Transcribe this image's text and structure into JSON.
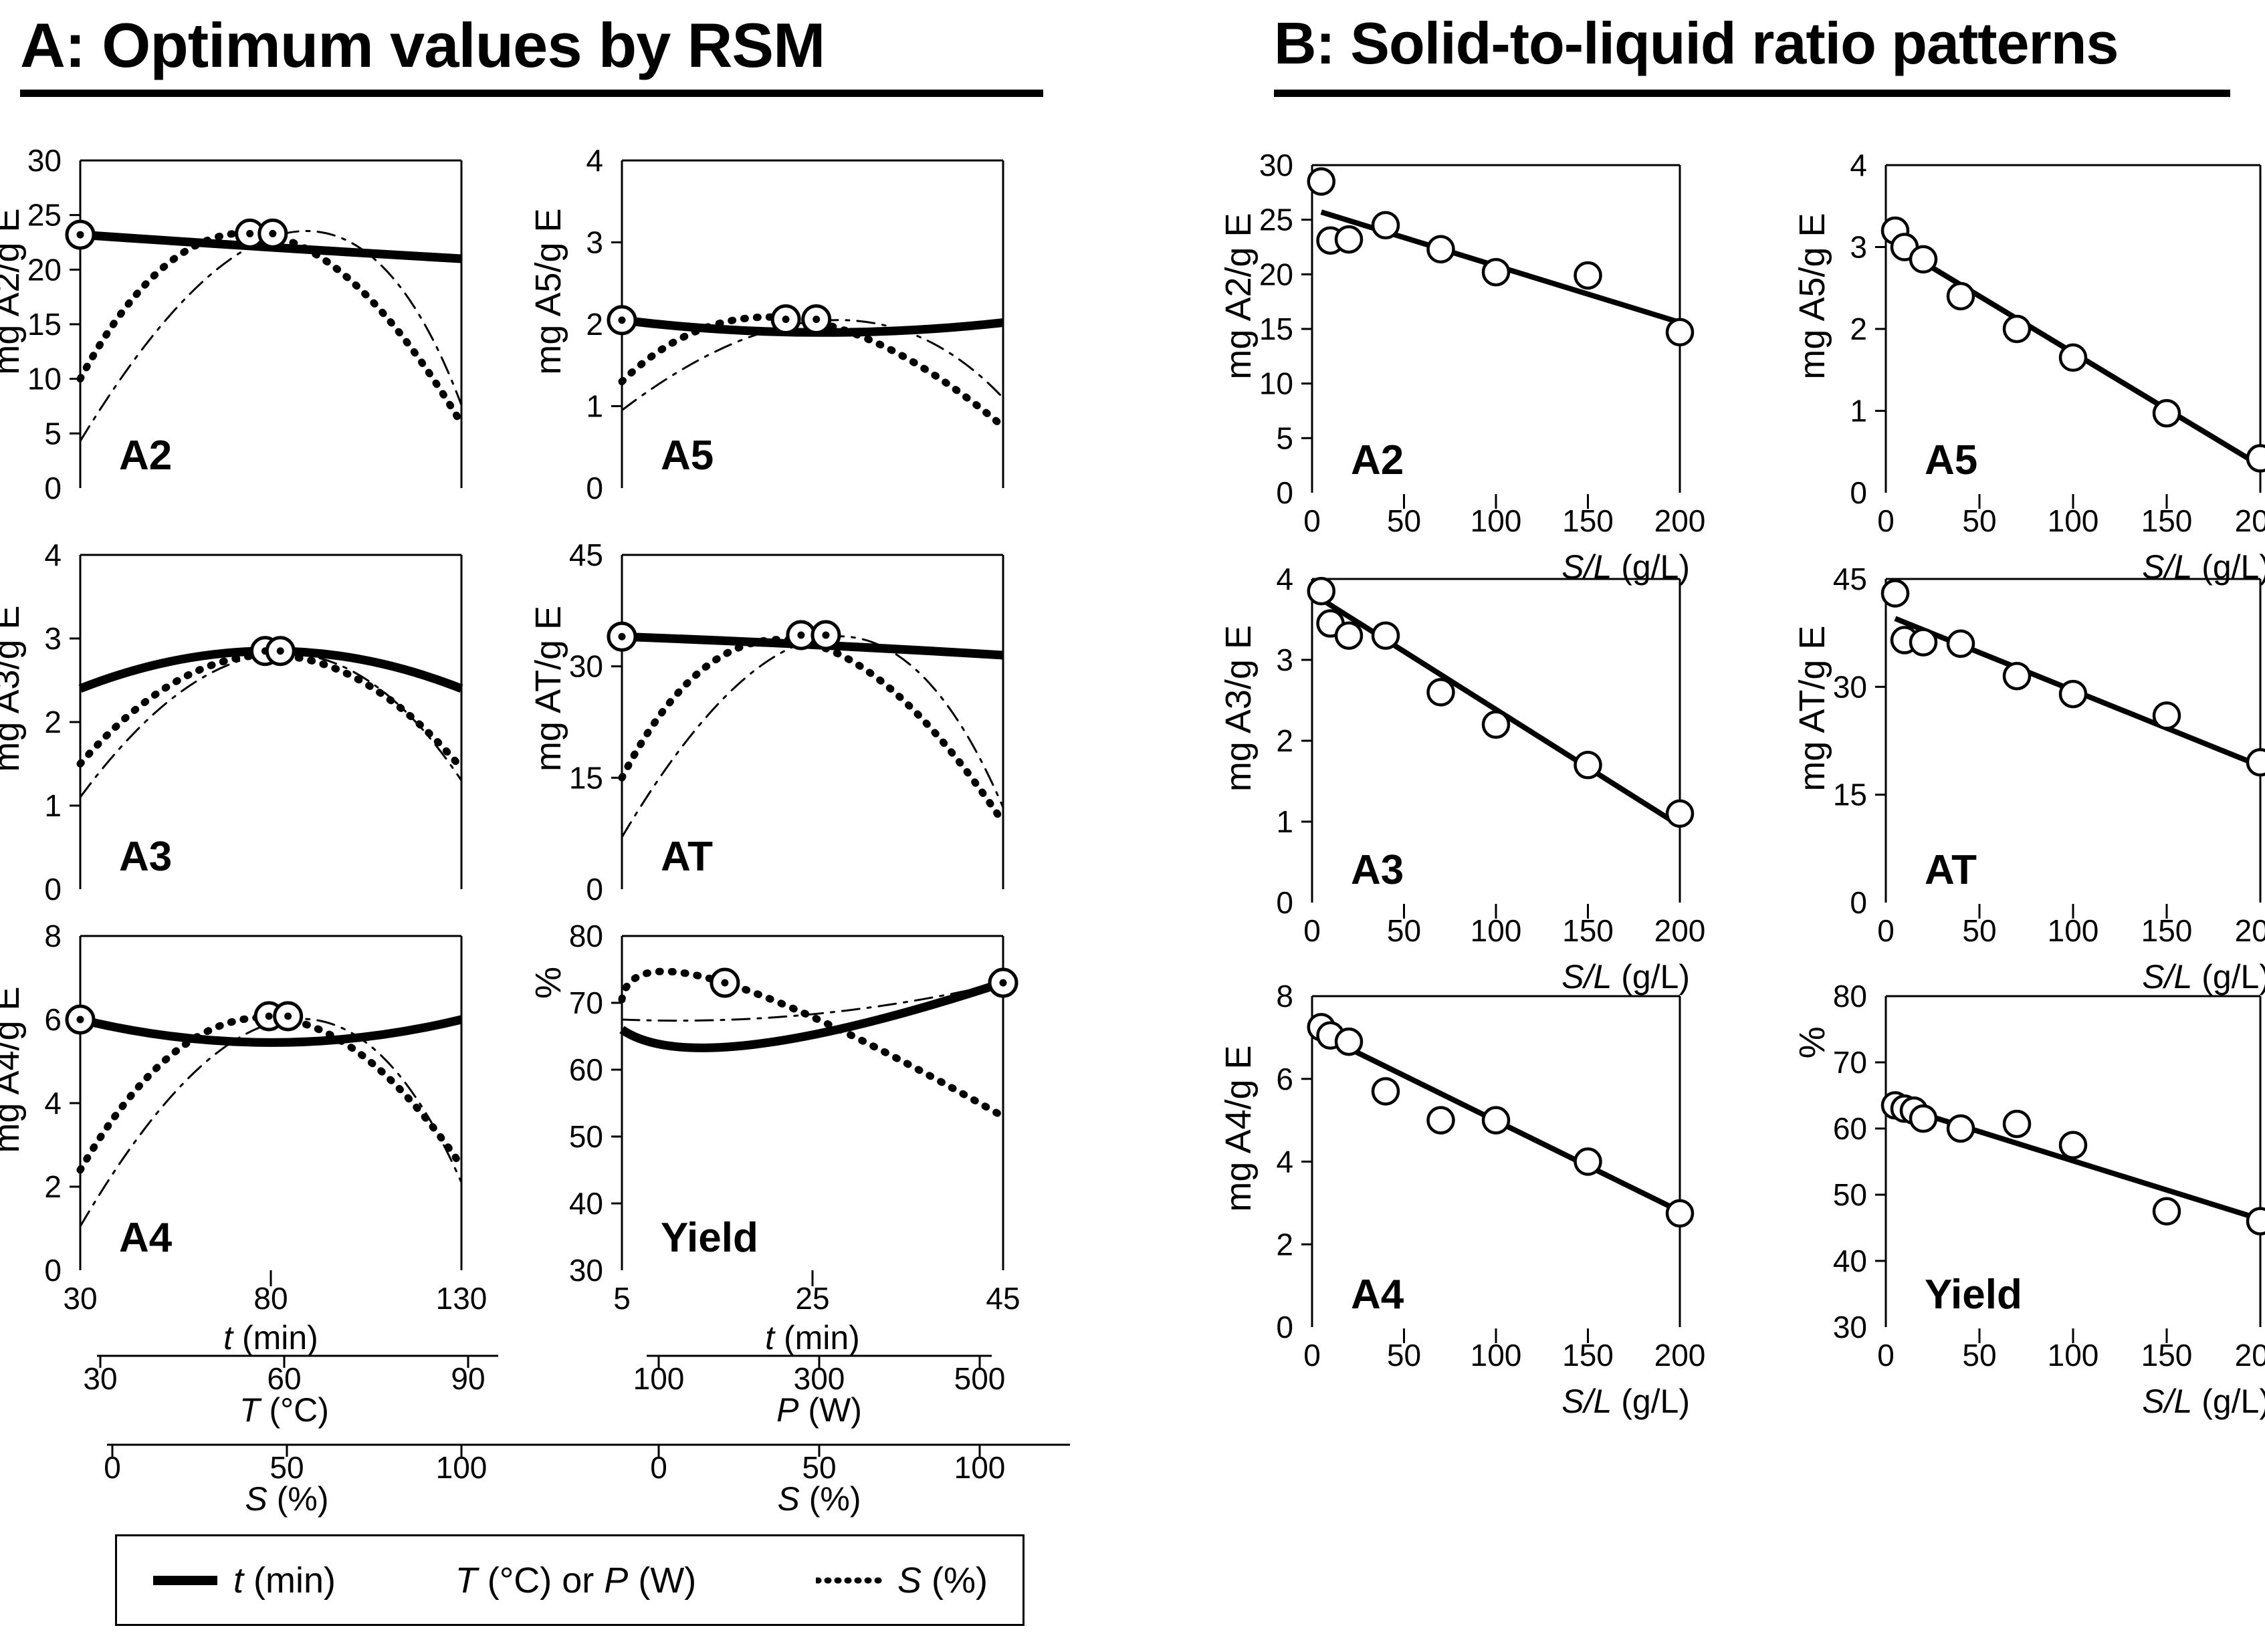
{
  "chart_data": {
    "type": "multi-panel-figure",
    "panel_a": {
      "title": "A: Optimum values by RSM",
      "x_scales": {
        "left_column": {
          "t_min": [
            30,
            130
          ],
          "T_C": [
            30,
            90
          ],
          "S_pct": [
            0,
            100
          ]
        },
        "right_column": {
          "t_min": [
            5,
            45
          ],
          "P_W": [
            100,
            500
          ],
          "S_pct": [
            0,
            100
          ]
        }
      },
      "charts": [
        {
          "id": "A2",
          "type": "line",
          "label": "A2",
          "ylabel": "mg A2/g E",
          "ylim": [
            0,
            30
          ],
          "yticks": [
            0,
            5,
            10,
            15,
            20,
            25,
            30
          ],
          "curves": {
            "t_min": [
              [
                0,
                23.2
              ],
              [
                0.5,
                22.05
              ],
              [
                1,
                21.0
              ]
            ],
            "T_or_P": [
              [
                0,
                4.3
              ],
              [
                0.57,
                23.5
              ],
              [
                1,
                7.6
              ]
            ],
            "S_pct": [
              [
                0,
                10.0
              ],
              [
                0.47,
                23.3
              ],
              [
                1,
                5.9
              ]
            ]
          },
          "optima_fx": [
            [
              0,
              23.2
            ],
            [
              0.445,
              23.3
            ],
            [
              0.505,
              23.3
            ]
          ]
        },
        {
          "id": "A5",
          "type": "line",
          "label": "A5",
          "ylabel": "mg A5/g E",
          "ylim": [
            0,
            4
          ],
          "yticks": [
            0,
            1,
            2,
            3,
            4
          ],
          "curves": {
            "t_min": [
              [
                0,
                2.05
              ],
              [
                0.5,
                1.9
              ],
              [
                1,
                2.02
              ]
            ],
            "T_or_P": [
              [
                0,
                0.95
              ],
              [
                0.55,
                2.05
              ],
              [
                1,
                1.1
              ]
            ],
            "S_pct": [
              [
                0,
                1.3
              ],
              [
                0.45,
                2.07
              ],
              [
                1,
                0.75
              ]
            ]
          },
          "optima_fx": [
            [
              0,
              2.05
            ],
            [
              0.43,
              2.06
            ],
            [
              0.51,
              2.06
            ]
          ]
        },
        {
          "id": "A3",
          "type": "line",
          "label": "A3",
          "ylabel": "mg A3/g E",
          "ylim": [
            0,
            4
          ],
          "yticks": [
            0,
            1,
            2,
            3,
            4
          ],
          "curves": {
            "t_min": [
              [
                0,
                2.4
              ],
              [
                0.5,
                2.85
              ],
              [
                1,
                2.4
              ]
            ],
            "T_or_P": [
              [
                0,
                1.1
              ],
              [
                0.52,
                2.82
              ],
              [
                1,
                1.3
              ]
            ],
            "S_pct": [
              [
                0,
                1.5
              ],
              [
                0.5,
                2.8
              ],
              [
                1,
                1.45
              ]
            ]
          },
          "optima_fx": [
            [
              0.485,
              2.85
            ],
            [
              0.525,
              2.85
            ]
          ]
        },
        {
          "id": "AT",
          "type": "line",
          "label": "AT",
          "ylabel": "mg AT/g E",
          "ylim": [
            0,
            45
          ],
          "yticks": [
            0,
            15,
            30,
            45
          ],
          "curves": {
            "t_min": [
              [
                0,
                34
              ],
              [
                0.5,
                32.9
              ],
              [
                1,
                31.5
              ]
            ],
            "T_or_P": [
              [
                0,
                7
              ],
              [
                0.55,
                34
              ],
              [
                1,
                11
              ]
            ],
            "S_pct": [
              [
                0,
                15
              ],
              [
                0.45,
                33.5
              ],
              [
                1,
                9
              ]
            ]
          },
          "optima_fx": [
            [
              0,
              34
            ],
            [
              0.47,
              34.2
            ],
            [
              0.535,
              34.2
            ]
          ]
        },
        {
          "id": "A4",
          "type": "line",
          "label": "A4",
          "ylabel": "mg A4/g E",
          "ylim": [
            0,
            8
          ],
          "yticks": [
            0,
            2,
            4,
            6,
            8
          ],
          "xticklabels": [
            "30",
            "80",
            "130"
          ],
          "xtitle": [
            [
              "t",
              true
            ],
            [
              " (min)",
              false
            ]
          ],
          "curves": {
            "t_min": [
              [
                0,
                6.0
              ],
              [
                0.5,
                5.45
              ],
              [
                1,
                6.0
              ]
            ],
            "T_or_P": [
              [
                0,
                1.05
              ],
              [
                0.55,
                6.0
              ],
              [
                1,
                2.1
              ]
            ],
            "S_pct": [
              [
                0,
                2.4
              ],
              [
                0.48,
                6.05
              ],
              [
                1,
                2.5
              ]
            ]
          },
          "optima_fx": [
            [
              0,
              6.0
            ],
            [
              0.495,
              6.08
            ],
            [
              0.545,
              6.08
            ]
          ]
        },
        {
          "id": "Yield",
          "type": "line",
          "label": "Yield",
          "ylabel": "%",
          "ylim": [
            30,
            80
          ],
          "yticks": [
            30,
            40,
            50,
            60,
            70,
            80
          ],
          "xticklabels": [
            "5",
            "25",
            "45"
          ],
          "xtitle": [
            [
              "t",
              true
            ],
            [
              " (min)",
              false
            ]
          ],
          "curves": {
            "t_min": [
              [
                0,
                66
              ],
              [
                0.35,
                63.8
              ],
              [
                1,
                73
              ]
            ],
            "T_or_P": [
              [
                0,
                67.5
              ],
              [
                0.5,
                68.3
              ],
              [
                1,
                73
              ]
            ],
            "S_pct": [
              [
                0,
                70.5
              ],
              [
                0.27,
                73
              ],
              [
                1,
                53
              ]
            ]
          },
          "optima_fx": [
            [
              0.27,
              73
            ],
            [
              1,
              73
            ]
          ]
        }
      ],
      "sub_axes": {
        "left": [
          {
            "title": [
              [
                "T",
                true
              ],
              [
                " (°C)",
                false
              ]
            ],
            "labels": [
              "30",
              "60",
              "90"
            ]
          },
          {
            "title": [
              [
                "S",
                true
              ],
              [
                " (%)",
                false
              ]
            ],
            "labels": [
              "0",
              "50",
              "100"
            ]
          }
        ],
        "right": [
          {
            "title": [
              [
                "P",
                true
              ],
              [
                " (W)",
                false
              ]
            ],
            "labels": [
              "100",
              "300",
              "500"
            ]
          },
          {
            "title": [
              [
                "S",
                true
              ],
              [
                " (%)",
                false
              ]
            ],
            "labels": [
              "0",
              "50",
              "100"
            ]
          }
        ]
      },
      "legend": [
        {
          "sample": "thick",
          "label": [
            [
              "t",
              true
            ],
            [
              " (min)",
              false
            ]
          ]
        },
        {
          "sample": "none",
          "label": [
            [
              "T",
              true
            ],
            [
              " (°C) or ",
              false
            ],
            [
              "P",
              true
            ],
            [
              " (W)",
              false
            ]
          ]
        },
        {
          "sample": "dotted",
          "label": [
            [
              "S",
              true
            ],
            [
              " (%)",
              false
            ]
          ]
        }
      ]
    },
    "panel_b": {
      "title": "B:  Solid-to-liquid ratio patterns",
      "xlim": [
        0,
        200
      ],
      "xticks": [
        0,
        50,
        100,
        150,
        200
      ],
      "xlabel": [
        [
          "S/L",
          true
        ],
        [
          " (g/L)",
          false
        ]
      ],
      "charts": [
        {
          "id": "A2",
          "type": "scatter",
          "label": "A2",
          "ylabel": "mg A2/g E",
          "ylim": [
            0,
            30
          ],
          "yticks": [
            0,
            5,
            10,
            15,
            20,
            25,
            30
          ],
          "points": [
            [
              5,
              28.5
            ],
            [
              10,
              23.1
            ],
            [
              20,
              23.2
            ],
            [
              40,
              24.5
            ],
            [
              70,
              22.3
            ],
            [
              100,
              20.2
            ],
            [
              150,
              19.9
            ],
            [
              200,
              14.7
            ]
          ],
          "trend": [
            [
              5,
              25.7
            ],
            [
              200,
              15.6
            ]
          ]
        },
        {
          "id": "A5",
          "type": "scatter",
          "label": "A5",
          "ylabel": "mg A5/g E",
          "ylim": [
            0,
            4
          ],
          "yticks": [
            0,
            1,
            2,
            3,
            4
          ],
          "points": [
            [
              5,
              3.2
            ],
            [
              10,
              3.0
            ],
            [
              20,
              2.85
            ],
            [
              40,
              2.4
            ],
            [
              70,
              2.0
            ],
            [
              100,
              1.65
            ],
            [
              150,
              0.97
            ],
            [
              200,
              0.42
            ]
          ],
          "trend": [
            [
              8,
              2.98
            ],
            [
              200,
              0.33
            ]
          ]
        },
        {
          "id": "A3",
          "type": "scatter",
          "label": "A3",
          "ylabel": "mg A3/g E",
          "ylim": [
            0,
            4
          ],
          "yticks": [
            0,
            1,
            2,
            3,
            4
          ],
          "points": [
            [
              5,
              3.85
            ],
            [
              10,
              3.45
            ],
            [
              20,
              3.3
            ],
            [
              40,
              3.3
            ],
            [
              70,
              2.6
            ],
            [
              100,
              2.2
            ],
            [
              150,
              1.7
            ],
            [
              200,
              1.1
            ]
          ],
          "trend": [
            [
              5,
              3.75
            ],
            [
              200,
              0.95
            ]
          ]
        },
        {
          "id": "AT",
          "type": "scatter",
          "label": "AT",
          "ylabel": "mg AT/g E",
          "ylim": [
            0,
            45
          ],
          "yticks": [
            0,
            15,
            30,
            45
          ],
          "points": [
            [
              5,
              43
            ],
            [
              10,
              36.5
            ],
            [
              20,
              36.2
            ],
            [
              40,
              36
            ],
            [
              70,
              31.5
            ],
            [
              100,
              29
            ],
            [
              150,
              26
            ],
            [
              200,
              19.5
            ]
          ],
          "trend": [
            [
              5,
              39.5
            ],
            [
              200,
              19
            ]
          ]
        },
        {
          "id": "A4",
          "type": "scatter",
          "label": "A4",
          "ylabel": "mg A4/g E",
          "ylim": [
            0,
            8
          ],
          "yticks": [
            0,
            2,
            4,
            6,
            8
          ],
          "points": [
            [
              5,
              7.25
            ],
            [
              10,
              7.05
            ],
            [
              20,
              6.9
            ],
            [
              40,
              5.7
            ],
            [
              70,
              5.0
            ],
            [
              100,
              5.0
            ],
            [
              150,
              4.0
            ],
            [
              200,
              2.75
            ]
          ],
          "trend": [
            [
              8,
              7.0
            ],
            [
              200,
              2.8
            ]
          ]
        },
        {
          "id": "Yield",
          "type": "scatter",
          "label": "Yield",
          "ylabel": "%",
          "ylim": [
            30,
            80
          ],
          "yticks": [
            30,
            40,
            50,
            60,
            70,
            80
          ],
          "points": [
            [
              5,
              63.5
            ],
            [
              10,
              63.0
            ],
            [
              15,
              62.7
            ],
            [
              20,
              61.5
            ],
            [
              40,
              60.0
            ],
            [
              70,
              60.7
            ],
            [
              100,
              57.5
            ],
            [
              150,
              47.5
            ],
            [
              200,
              46.0
            ]
          ],
          "trend": [
            [
              5,
              63.5
            ],
            [
              200,
              46.3
            ]
          ]
        }
      ]
    }
  }
}
